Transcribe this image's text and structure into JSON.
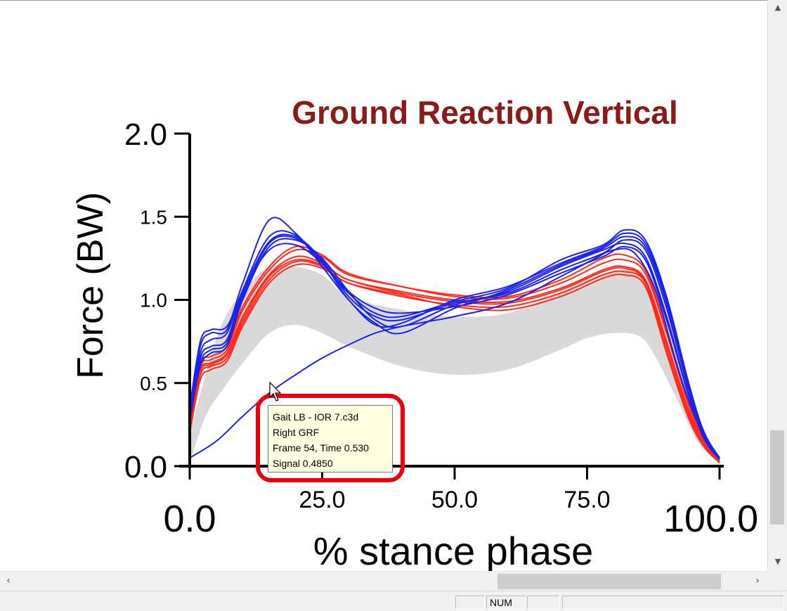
{
  "chart_data": {
    "type": "line",
    "title": "Ground Reaction Vertical",
    "xlabel": "% stance phase",
    "ylabel": "Force (BW)",
    "xlim": [
      0,
      100
    ],
    "ylim": [
      0,
      2
    ],
    "x_ticks": [
      "0.0",
      "25.0",
      "50.0",
      "75.0",
      "100.0"
    ],
    "y_ticks": [
      "0.0",
      "0.5",
      "1.0",
      "1.5",
      "2.0"
    ],
    "grid": false,
    "normal_band": {
      "color": "#d9d9d9",
      "x": [
        0,
        3,
        6,
        10,
        15,
        20,
        25,
        30,
        40,
        50,
        60,
        70,
        75,
        80,
        85,
        88,
        92,
        96,
        100
      ],
      "upper": [
        0.2,
        0.55,
        0.85,
        1.05,
        1.2,
        1.2,
        1.15,
        1.02,
        0.94,
        0.9,
        0.92,
        1.05,
        1.12,
        1.17,
        1.18,
        1.1,
        0.72,
        0.3,
        0.05
      ],
      "lower": [
        0.02,
        0.3,
        0.45,
        0.62,
        0.8,
        0.85,
        0.8,
        0.72,
        0.6,
        0.55,
        0.58,
        0.7,
        0.77,
        0.8,
        0.78,
        0.65,
        0.4,
        0.14,
        0.02
      ]
    },
    "series": [
      {
        "color": "#ff2a1a",
        "x": [
          0,
          2,
          4,
          7,
          10,
          15,
          20,
          25,
          30,
          40,
          50,
          60,
          70,
          78,
          82,
          86,
          90,
          94,
          97,
          100
        ],
        "values": [
          0.25,
          0.58,
          0.62,
          0.68,
          0.9,
          1.15,
          1.26,
          1.22,
          1.12,
          1.05,
          1.0,
          0.99,
          1.07,
          1.18,
          1.2,
          1.12,
          0.75,
          0.35,
          0.15,
          0.03
        ]
      },
      {
        "color": "#ff2a1a",
        "x": [
          0,
          2,
          4,
          7,
          10,
          15,
          20,
          25,
          30,
          40,
          50,
          60,
          70,
          78,
          82,
          86,
          90,
          94,
          97,
          100
        ],
        "values": [
          0.22,
          0.55,
          0.6,
          0.65,
          0.86,
          1.12,
          1.23,
          1.2,
          1.1,
          1.02,
          0.97,
          0.96,
          1.04,
          1.15,
          1.17,
          1.1,
          0.7,
          0.32,
          0.13,
          0.03
        ]
      },
      {
        "color": "#ff2a1a",
        "x": [
          0,
          2,
          4,
          7,
          10,
          15,
          20,
          25,
          30,
          40,
          50,
          60,
          70,
          78,
          82,
          86,
          90,
          94,
          97,
          100
        ],
        "values": [
          0.28,
          0.6,
          0.64,
          0.7,
          0.94,
          1.18,
          1.3,
          1.26,
          1.15,
          1.08,
          1.02,
          1.01,
          1.1,
          1.22,
          1.24,
          1.16,
          0.8,
          0.38,
          0.16,
          0.04
        ]
      },
      {
        "color": "#ff2a1a",
        "x": [
          0,
          2,
          4,
          7,
          10,
          15,
          20,
          25,
          30,
          40,
          50,
          60,
          70,
          78,
          82,
          86,
          90,
          94,
          97,
          100
        ],
        "values": [
          0.2,
          0.52,
          0.58,
          0.63,
          0.84,
          1.1,
          1.21,
          1.19,
          1.1,
          1.03,
          0.96,
          0.94,
          1.02,
          1.13,
          1.15,
          1.08,
          0.68,
          0.3,
          0.12,
          0.02
        ]
      },
      {
        "color": "#ff2a1a",
        "x": [
          0,
          2,
          4,
          7,
          10,
          15,
          20,
          25,
          30,
          40,
          50,
          60,
          70,
          78,
          82,
          86,
          90,
          94,
          97,
          100
        ],
        "values": [
          0.3,
          0.62,
          0.66,
          0.72,
          0.96,
          1.2,
          1.32,
          1.27,
          1.16,
          1.08,
          1.03,
          1.02,
          1.12,
          1.25,
          1.27,
          1.18,
          0.82,
          0.4,
          0.17,
          0.04
        ]
      },
      {
        "color": "#ff2a1a",
        "x": [
          0,
          2,
          4,
          7,
          10,
          15,
          20,
          25,
          30,
          40,
          50,
          60,
          70,
          78,
          82,
          86,
          90,
          94,
          97,
          100
        ],
        "values": [
          0.24,
          0.57,
          0.61,
          0.67,
          0.88,
          1.14,
          1.24,
          1.21,
          1.12,
          1.04,
          0.99,
          0.98,
          1.06,
          1.17,
          1.19,
          1.11,
          0.73,
          0.34,
          0.14,
          0.03
        ]
      },
      {
        "color": "#1a22ee",
        "x": [
          0,
          2,
          4,
          7,
          10,
          15,
          20,
          25,
          30,
          35,
          40,
          50,
          60,
          70,
          78,
          82,
          86,
          90,
          94,
          97,
          100
        ],
        "values": [
          0.3,
          0.6,
          0.68,
          0.72,
          1.0,
          1.32,
          1.36,
          1.25,
          1.05,
          0.88,
          0.84,
          0.97,
          1.05,
          1.2,
          1.3,
          1.34,
          1.26,
          0.9,
          0.45,
          0.18,
          0.04
        ]
      },
      {
        "color": "#1a22ee",
        "x": [
          0,
          2,
          4,
          7,
          10,
          15,
          20,
          25,
          30,
          35,
          40,
          50,
          60,
          70,
          78,
          82,
          86,
          90,
          94,
          97,
          100
        ],
        "values": [
          0.32,
          0.72,
          0.8,
          0.82,
          1.1,
          1.48,
          1.4,
          1.2,
          1.0,
          0.85,
          0.86,
          1.0,
          1.08,
          1.22,
          1.32,
          1.4,
          1.34,
          1.0,
          0.5,
          0.2,
          0.05
        ]
      },
      {
        "color": "#1a22ee",
        "x": [
          0,
          2,
          4,
          7,
          10,
          15,
          20,
          25,
          30,
          35,
          40,
          50,
          60,
          70,
          78,
          82,
          86,
          90,
          94,
          97,
          100
        ],
        "values": [
          0.28,
          0.65,
          0.72,
          0.76,
          1.04,
          1.35,
          1.38,
          1.24,
          1.02,
          0.9,
          0.88,
          0.98,
          1.04,
          1.18,
          1.28,
          1.36,
          1.3,
          0.95,
          0.48,
          0.19,
          0.04
        ]
      },
      {
        "color": "#1a22ee",
        "x": [
          0,
          2,
          4,
          7,
          10,
          15,
          20,
          25,
          30,
          35,
          40,
          50,
          60,
          70,
          78,
          82,
          86,
          90,
          94,
          97,
          100
        ],
        "values": [
          0.35,
          0.75,
          0.82,
          0.84,
          1.05,
          1.3,
          1.33,
          1.22,
          1.05,
          0.95,
          0.92,
          0.96,
          1.03,
          1.16,
          1.26,
          1.32,
          1.24,
          0.88,
          0.44,
          0.17,
          0.04
        ]
      },
      {
        "color": "#1a22ee",
        "x": [
          0,
          2,
          4,
          7,
          10,
          15,
          20,
          25,
          30,
          35,
          40,
          50,
          60,
          70,
          78,
          82,
          86,
          90,
          94,
          97,
          100
        ],
        "values": [
          0.26,
          0.62,
          0.7,
          0.74,
          1.02,
          1.34,
          1.37,
          1.23,
          1.0,
          0.86,
          0.8,
          0.95,
          1.06,
          1.21,
          1.31,
          1.38,
          1.32,
          0.98,
          0.49,
          0.2,
          0.05
        ]
      },
      {
        "color": "#1a22ee",
        "x": [
          0,
          2,
          4,
          7,
          10,
          15,
          20,
          25,
          30,
          35,
          40,
          50,
          60,
          70,
          78,
          82,
          86,
          90,
          94,
          97,
          100
        ],
        "values": [
          0.29,
          0.68,
          0.76,
          0.8,
          1.06,
          1.38,
          1.39,
          1.22,
          1.04,
          0.92,
          0.9,
          0.99,
          1.07,
          1.24,
          1.33,
          1.42,
          1.36,
          1.02,
          0.52,
          0.21,
          0.05
        ]
      },
      {
        "color": "#1a22ee",
        "x": [
          0,
          5,
          10,
          15,
          20,
          25,
          30,
          35,
          40,
          45,
          50,
          60,
          70,
          76,
          80,
          84,
          88,
          92,
          96,
          100
        ],
        "values": [
          0.05,
          0.15,
          0.3,
          0.44,
          0.55,
          0.65,
          0.73,
          0.8,
          0.84,
          0.87,
          0.9,
          0.98,
          1.14,
          1.24,
          1.3,
          1.28,
          1.05,
          0.6,
          0.25,
          0.04
        ]
      }
    ]
  },
  "tooltip": {
    "line1": "Gait LB - IOR 7.c3d",
    "line2": "Right GRF",
    "line3": "Frame 54, Time 0.530",
    "line4": "Signal 0.4850"
  },
  "colors": {
    "title": "#8b1a1a",
    "axis": "#000000",
    "band": "#d9d9d9",
    "highlight": "#e8000b",
    "tooltip_bg": "#ffffe1"
  },
  "statusbar": {
    "num": "NUM"
  },
  "icons": [
    "scroll-up-icon",
    "scroll-down-icon",
    "scroll-left-icon",
    "scroll-right-icon",
    "mouse-pointer-icon"
  ]
}
